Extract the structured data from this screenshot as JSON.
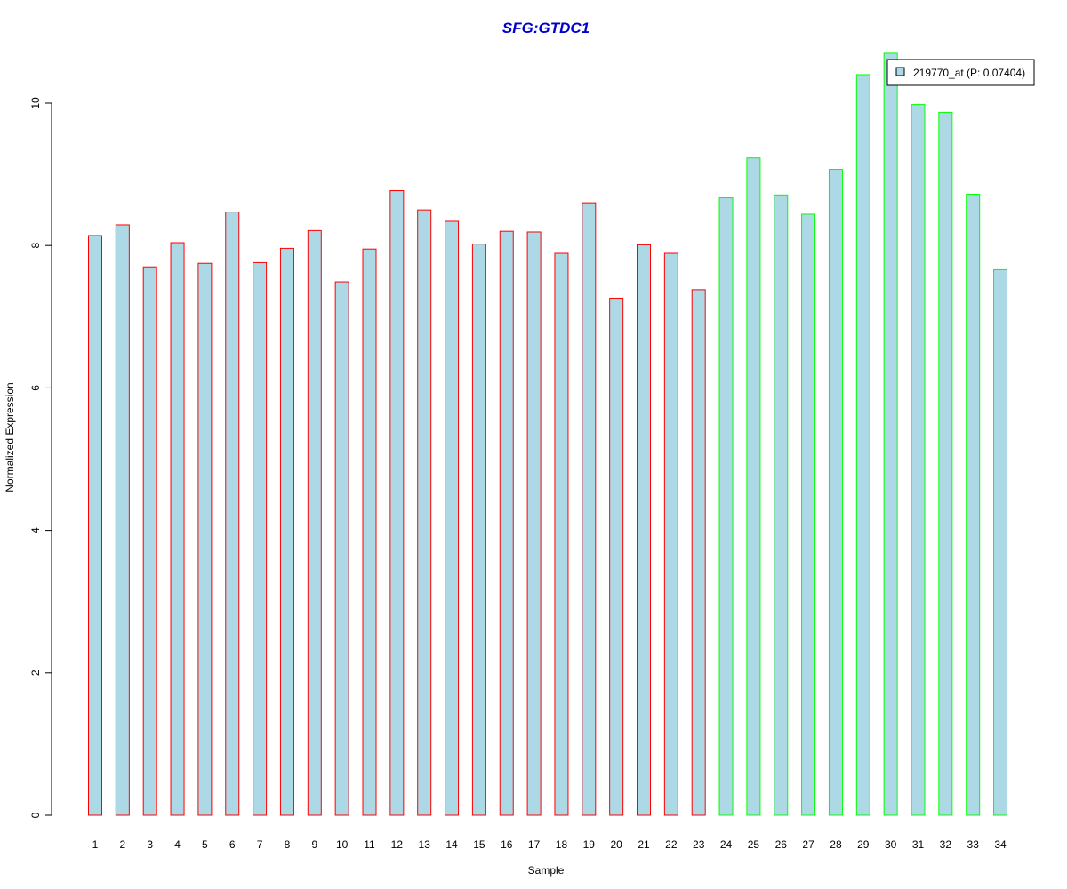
{
  "chart_data": {
    "type": "bar",
    "title": "SFG:GTDC1",
    "xlabel": "Sample",
    "ylabel": "Normalized Expression",
    "ylim": [
      0,
      10.7
    ],
    "yticks": [
      0,
      2,
      4,
      6,
      8,
      10
    ],
    "grid": false,
    "legend": {
      "placement": "top-right",
      "entries": [
        "219770_at (P: 0.07404)"
      ]
    },
    "categories": [
      "1",
      "2",
      "3",
      "4",
      "5",
      "6",
      "7",
      "8",
      "9",
      "10",
      "11",
      "12",
      "13",
      "14",
      "15",
      "16",
      "17",
      "18",
      "19",
      "20",
      "21",
      "22",
      "23",
      "24",
      "25",
      "26",
      "27",
      "28",
      "29",
      "30",
      "31",
      "32",
      "33",
      "34"
    ],
    "series": [
      {
        "name": "219770_at (P: 0.07404)",
        "values": [
          8.14,
          8.29,
          7.7,
          8.04,
          7.75,
          8.47,
          7.76,
          7.96,
          8.21,
          7.49,
          7.95,
          8.77,
          8.5,
          8.34,
          8.02,
          8.2,
          8.19,
          7.89,
          8.6,
          7.26,
          8.01,
          7.89,
          7.38,
          8.67,
          9.23,
          8.71,
          8.44,
          9.07,
          10.4,
          10.7,
          9.98,
          9.87,
          8.72,
          7.66
        ],
        "groups": [
          "red",
          "red",
          "red",
          "red",
          "red",
          "red",
          "red",
          "red",
          "red",
          "red",
          "red",
          "red",
          "red",
          "red",
          "red",
          "red",
          "red",
          "red",
          "red",
          "red",
          "red",
          "red",
          "red",
          "green",
          "green",
          "green",
          "green",
          "green",
          "green",
          "green",
          "green",
          "green",
          "green",
          "green"
        ]
      }
    ],
    "colors": {
      "bar_fill": "#add8e6",
      "outline_red": "#ff0000",
      "outline_green": "#00ff00",
      "title": "#0000cd",
      "axis": "#000000"
    }
  }
}
